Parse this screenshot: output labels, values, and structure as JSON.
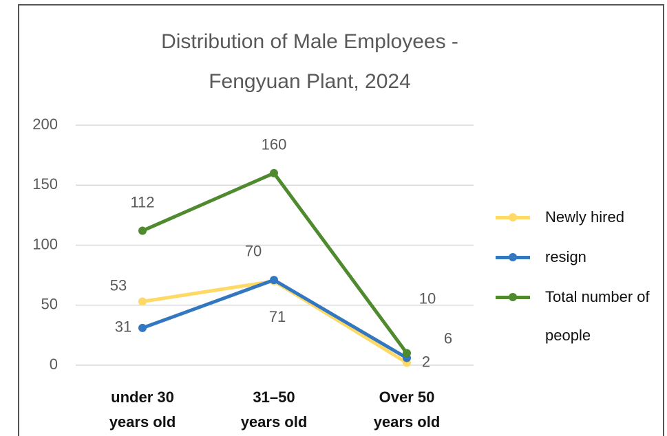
{
  "chart_data": {
    "type": "line",
    "title": "Distribution of Male Employees - Fengyuan Plant, 2024",
    "categories": [
      "under 30 years old",
      "31–50 years old",
      "Over 50 years old"
    ],
    "series": [
      {
        "name": "Newly hired",
        "color": "#ffd966",
        "values": [
          53,
          70,
          2
        ]
      },
      {
        "name": "resign",
        "color": "#3277c0",
        "values": [
          31,
          71,
          6
        ]
      },
      {
        "name": "Total number of people",
        "color": "#4f8a2e",
        "values": [
          112,
          160,
          10
        ]
      }
    ],
    "ylim": [
      0,
      200
    ],
    "yticks": [
      0,
      50,
      100,
      150,
      200
    ],
    "grid": true,
    "legend": "right"
  }
}
